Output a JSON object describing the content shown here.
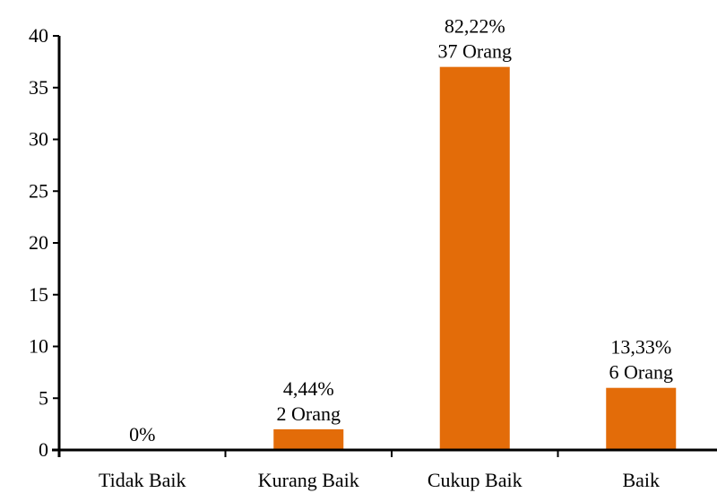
{
  "chart_data": {
    "type": "bar",
    "categories": [
      "Tidak Baik",
      "Kurang Baik",
      "Cukup Baik",
      "Baik"
    ],
    "values": [
      0,
      2,
      37,
      6
    ],
    "data_labels": [
      [
        "0%"
      ],
      [
        "4,44%",
        "2 Orang"
      ],
      [
        "82,22%",
        "37 Orang"
      ],
      [
        "13,33%",
        "6 Orang"
      ]
    ],
    "y_ticks": [
      "0",
      "5",
      "10",
      "15",
      "20",
      "25",
      "30",
      "35",
      "40"
    ],
    "ylim": [
      0,
      40
    ],
    "grid": false,
    "legend": "none",
    "bar_color": "#E36C09",
    "axis_color": "#000000"
  }
}
